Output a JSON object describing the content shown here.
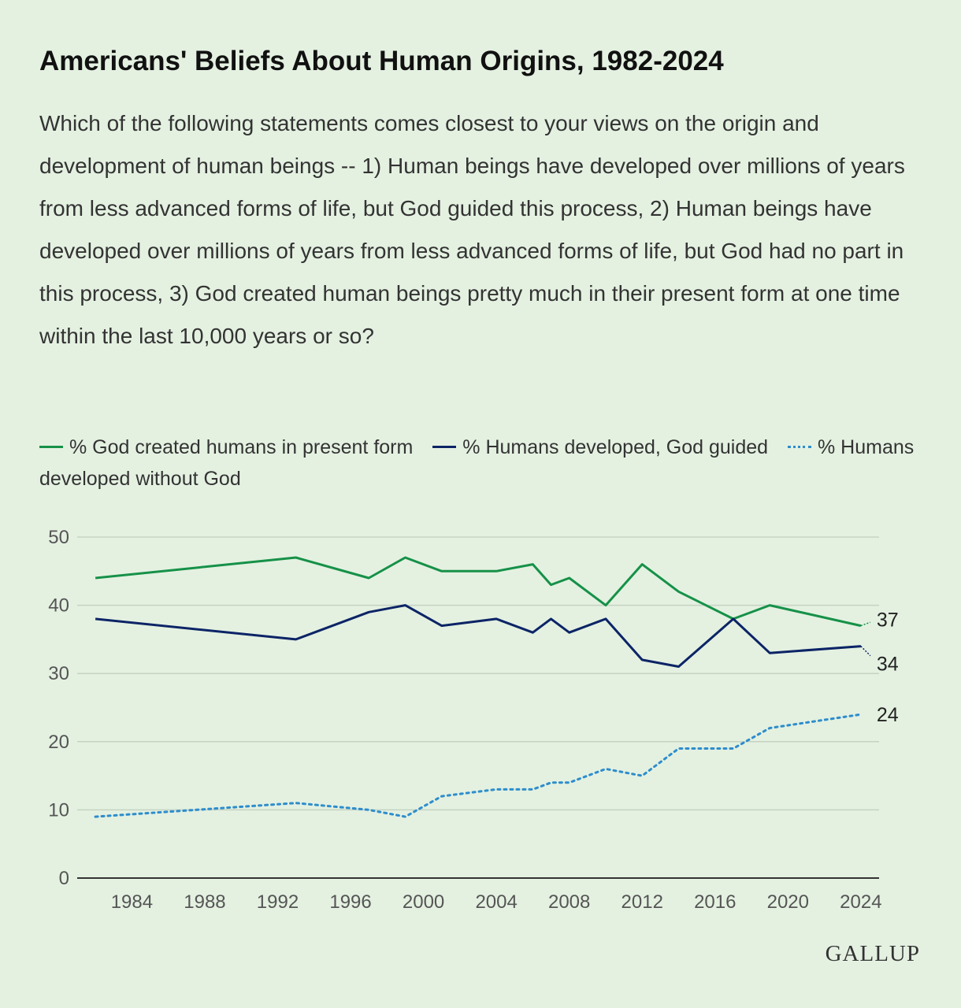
{
  "title": "Americans' Beliefs About Human Origins, 1982-2024",
  "subtitle": "Which of the following statements comes closest to your views on the origin and development of human beings -- 1) Human beings have developed over millions of years from less advanced forms of life, but God guided this process, 2) Human beings have developed over millions of years from less advanced forms of life, but God had no part in this process, 3) God created human beings pretty much in their present form at one time within the last 10,000 years or so?",
  "brand": "GALLUP",
  "chart_data": {
    "type": "line",
    "xlim": [
      1981,
      2025
    ],
    "ylim": [
      0,
      50
    ],
    "grid": true,
    "legend": "top-left",
    "x_ticks": [
      1984,
      1988,
      1992,
      1996,
      2000,
      2004,
      2008,
      2012,
      2016,
      2020,
      2024
    ],
    "y_ticks": [
      0,
      10,
      20,
      30,
      40,
      50
    ],
    "series": [
      {
        "name": "% God created humans in present form",
        "color": "#169148",
        "style": "solid",
        "end_label": "37",
        "points": [
          [
            1982,
            44
          ],
          [
            1993,
            47
          ],
          [
            1997,
            44
          ],
          [
            1999,
            47
          ],
          [
            2001,
            45
          ],
          [
            2004,
            45
          ],
          [
            2006,
            46
          ],
          [
            2007,
            43
          ],
          [
            2008,
            44
          ],
          [
            2010,
            40
          ],
          [
            2012,
            46
          ],
          [
            2014,
            42
          ],
          [
            2017,
            38
          ],
          [
            2019,
            40
          ],
          [
            2024,
            37
          ]
        ]
      },
      {
        "name": "% Humans developed, God guided",
        "color": "#0c2466",
        "style": "solid",
        "end_label": "34",
        "points": [
          [
            1982,
            38
          ],
          [
            1993,
            35
          ],
          [
            1997,
            39
          ],
          [
            1999,
            40
          ],
          [
            2001,
            37
          ],
          [
            2004,
            38
          ],
          [
            2006,
            36
          ],
          [
            2007,
            38
          ],
          [
            2008,
            36
          ],
          [
            2010,
            38
          ],
          [
            2012,
            32
          ],
          [
            2014,
            31
          ],
          [
            2017,
            38
          ],
          [
            2019,
            33
          ],
          [
            2024,
            34
          ]
        ]
      },
      {
        "name": "% Humans developed without God",
        "color": "#2e8dcc",
        "style": "dotted",
        "end_label": "24",
        "points": [
          [
            1982,
            9
          ],
          [
            1993,
            11
          ],
          [
            1997,
            10
          ],
          [
            1999,
            9
          ],
          [
            2001,
            12
          ],
          [
            2004,
            13
          ],
          [
            2006,
            13
          ],
          [
            2007,
            14
          ],
          [
            2008,
            14
          ],
          [
            2010,
            16
          ],
          [
            2012,
            15
          ],
          [
            2014,
            19
          ],
          [
            2017,
            19
          ],
          [
            2019,
            22
          ],
          [
            2024,
            24
          ]
        ]
      }
    ]
  }
}
